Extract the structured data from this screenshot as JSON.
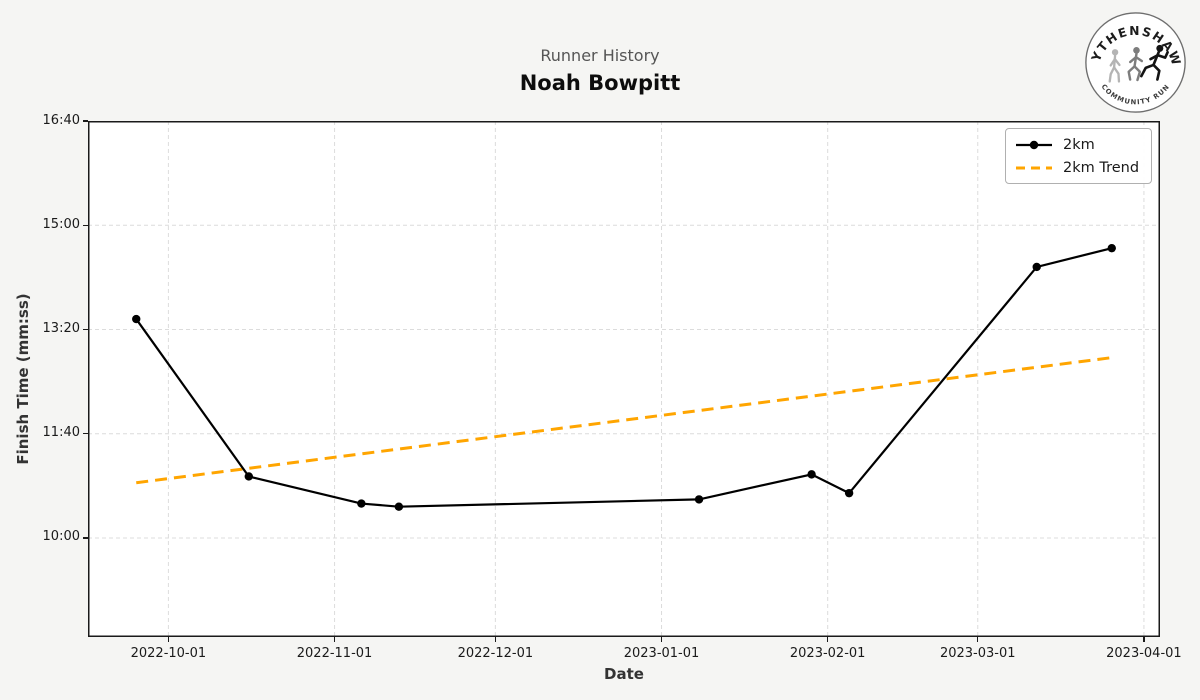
{
  "header": {
    "subtitle": "Runner History",
    "title": "Noah Bowpitt"
  },
  "logo": {
    "top_text": "WYTHENSHAWE",
    "bottom_text": "COMMUNITY RUN"
  },
  "chart_data": {
    "type": "line",
    "title": "Runner History",
    "subtitle": "Noah Bowpitt",
    "xlabel": "Date",
    "ylabel": "Finish Time (mm:ss)",
    "grid": true,
    "legend_position": "top-right",
    "xlim": [
      "2022-09-16",
      "2023-04-04"
    ],
    "ylim_seconds": [
      505,
      1000
    ],
    "x_ticks": [
      "2022-10-01",
      "2022-11-01",
      "2022-12-01",
      "2023-01-01",
      "2023-02-01",
      "2023-03-01",
      "2023-04-01"
    ],
    "y_ticks": [
      {
        "label": "16:40",
        "seconds": 1000
      },
      {
        "label": "15:00",
        "seconds": 900
      },
      {
        "label": "13:20",
        "seconds": 800
      },
      {
        "label": "11:40",
        "seconds": 700
      },
      {
        "label": "10:00",
        "seconds": 600
      }
    ],
    "series": [
      {
        "name": "2km",
        "color": "#000000",
        "style": "solid-markers",
        "points": [
          {
            "date": "2022-09-25",
            "time": "13:30",
            "seconds": 810
          },
          {
            "date": "2022-10-16",
            "time": "10:59",
            "seconds": 659
          },
          {
            "date": "2022-11-06",
            "time": "10:33",
            "seconds": 633
          },
          {
            "date": "2022-11-13",
            "time": "10:30",
            "seconds": 630
          },
          {
            "date": "2023-01-08",
            "time": "10:37",
            "seconds": 637
          },
          {
            "date": "2023-01-29",
            "time": "11:01",
            "seconds": 661
          },
          {
            "date": "2023-02-05",
            "time": "10:43",
            "seconds": 643
          },
          {
            "date": "2023-03-12",
            "time": "14:20",
            "seconds": 860
          },
          {
            "date": "2023-03-26",
            "time": "14:38",
            "seconds": 878
          }
        ]
      },
      {
        "name": "2km Trend",
        "color": "#FFA500",
        "style": "dashed",
        "points": [
          {
            "date": "2022-09-25",
            "time": "10:53",
            "seconds": 653
          },
          {
            "date": "2023-03-26",
            "time": "12:53",
            "seconds": 773
          }
        ]
      }
    ]
  }
}
